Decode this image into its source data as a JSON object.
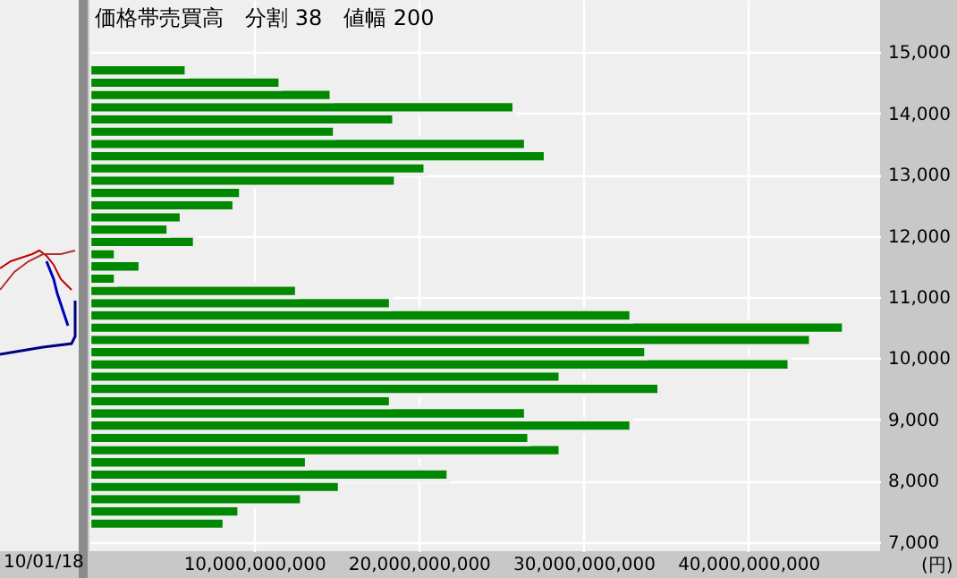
{
  "chart_data": {
    "type": "histogram",
    "title": "価格帯売買高　分割 38　値幅 200",
    "orientation": "horizontal",
    "color": "#008800",
    "bins": [
      7200,
      7400,
      7600,
      7800,
      8000,
      8200,
      8400,
      8600,
      8800,
      9000,
      9200,
      9400,
      9600,
      9800,
      10000,
      10200,
      10400,
      10600,
      10800,
      11000,
      11200,
      11400,
      11600,
      11800,
      12000,
      12200,
      12400,
      12600,
      12800,
      13000,
      13200,
      13400,
      13600,
      13800,
      14000,
      14200,
      14400,
      14600,
      14800
    ],
    "values": [
      8200000000,
      9100000000,
      12900000000,
      15200000000,
      21800000000,
      13200000000,
      28600000000,
      26700000000,
      32900000000,
      26500000000,
      18300000000,
      34600000000,
      28600000000,
      42500000000,
      33800000000,
      43800000000,
      45800000000,
      32900000000,
      18300000000,
      12600000000,
      1600000000,
      3100000000,
      1600000000,
      6400000000,
      4800000000,
      5600000000,
      8800000000,
      9200000000,
      18600000000,
      20400000000,
      27700000000,
      26500000000,
      14900000000,
      18500000000,
      25800000000,
      14700000000,
      11600000000,
      5900000000
    ],
    "xlim": [
      0,
      48000000000
    ],
    "xticks": [
      {
        "value": 10000000000,
        "label": "10,000,000,000"
      },
      {
        "value": 20000000000,
        "label": "20,000,000,000"
      },
      {
        "value": 30000000000,
        "label": "30,000,000,000"
      },
      {
        "value": 40000000000,
        "label": "40,000,000,000"
      }
    ],
    "ylim": [
      6850,
      15850
    ],
    "yticks": [
      {
        "value": 7000,
        "label": "7,000"
      },
      {
        "value": 8000,
        "label": "8,000"
      },
      {
        "value": 9000,
        "label": "9,000"
      },
      {
        "value": 10000,
        "label": "10,000"
      },
      {
        "value": 11000,
        "label": "11,000"
      },
      {
        "value": 12000,
        "label": "12,000"
      },
      {
        "value": 13000,
        "label": "13,000"
      },
      {
        "value": 14000,
        "label": "14,000"
      },
      {
        "value": 15000,
        "label": "15,000"
      }
    ],
    "grid": true,
    "annotations": [
      "(円)",
      "10/01/18"
    ]
  }
}
